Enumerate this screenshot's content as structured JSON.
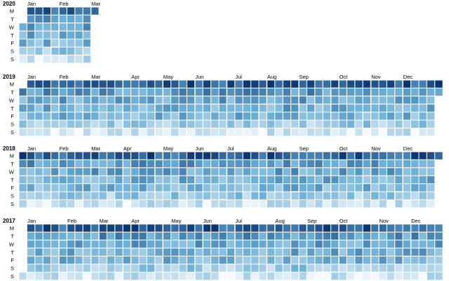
{
  "chart_data": {
    "type": "heatmap",
    "layout": "calendar",
    "title": "",
    "week_start": "Monday",
    "color_scale": {
      "low": "#f7fbff",
      "high": "#08306b",
      "name": "Blues"
    },
    "day_labels": [
      "M",
      "T",
      "W",
      "T",
      "F",
      "S",
      "S"
    ],
    "years": [
      {
        "year": "2020",
        "start_date": "2020-01-01",
        "end_date": "2020-03-02",
        "month_labels": [
          "Jan",
          "Feb",
          "Mar"
        ]
      },
      {
        "year": "2019",
        "start_date": "2019-01-01",
        "end_date": "2019-12-31",
        "month_labels": [
          "Jan",
          "Feb",
          "Mar",
          "Apr",
          "May",
          "Jun",
          "Jul",
          "Aug",
          "Sep",
          "Oct",
          "Nov",
          "Dec"
        ]
      },
      {
        "year": "2018",
        "start_date": "2018-01-01",
        "end_date": "2018-12-31",
        "month_labels": [
          "Jan",
          "Feb",
          "Mar",
          "Apr",
          "May",
          "Jun",
          "Jul",
          "Aug",
          "Sep",
          "Oct",
          "Nov",
          "Dec"
        ]
      },
      {
        "year": "2017",
        "start_date": "2017-01-01",
        "end_date": "2017-12-31",
        "month_labels": [
          "Jan",
          "Feb",
          "Mar",
          "Apr",
          "May",
          "Jun",
          "Jul",
          "Aug",
          "Sep",
          "Oct",
          "Nov",
          "Dec"
        ]
      }
    ],
    "weekday_intensity": {
      "description": "approximate relative daily value (0-1) by weekday, Monday to Sunday",
      "values": [
        0.82,
        0.58,
        0.52,
        0.48,
        0.45,
        0.32,
        0.14
      ]
    }
  }
}
